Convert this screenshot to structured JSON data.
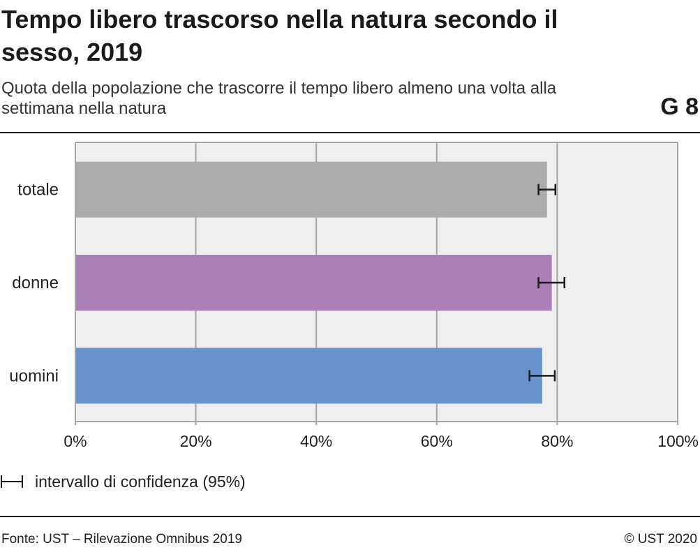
{
  "header": {
    "title": "Tempo libero trascorso nella natura secondo il sesso, 2019",
    "subtitle": "Quota della popolazione che trascorre il tempo libero almeno una volta alla settimana nella natura",
    "figure_number": "G 8"
  },
  "legend": {
    "confidence_label": "intervallo di confidenza (95%)"
  },
  "footer": {
    "source": "Fonte: UST – Rilevazione Omnibus 2019",
    "copyright": "© UST 2020"
  },
  "colors": {
    "plot_background": "#efefef",
    "grid": "#a6a6a6",
    "error_bar": "#1a1a1a"
  },
  "chart_data": {
    "type": "bar",
    "orientation": "horizontal",
    "categories": [
      "totale",
      "donne",
      "uomini"
    ],
    "values": [
      78.3,
      79.1,
      77.5
    ],
    "error_low": [
      76.9,
      76.9,
      75.4
    ],
    "error_high": [
      79.7,
      81.2,
      79.6
    ],
    "bar_colors": [
      "#ababab",
      "#ab80b8",
      "#6892cb"
    ],
    "xlim": [
      0,
      100
    ],
    "x_ticks": [
      0,
      20,
      40,
      60,
      80,
      100
    ],
    "x_tick_labels": [
      "0%",
      "20%",
      "40%",
      "60%",
      "80%",
      "100%"
    ],
    "grid": true,
    "xlabel": "",
    "ylabel": ""
  }
}
